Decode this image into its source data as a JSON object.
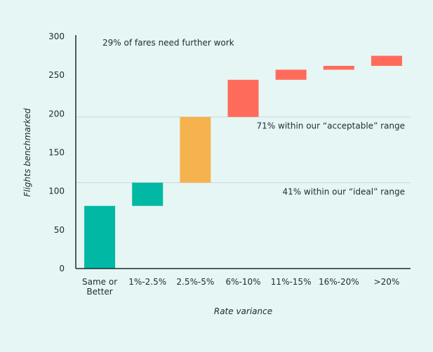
{
  "chart_data": {
    "type": "bar",
    "subtype": "waterfall",
    "title": "",
    "xlabel": "Rate variance",
    "ylabel": "Flights benchmarked",
    "ylim": [
      0,
      300
    ],
    "yticks": [
      "0",
      "50",
      "100",
      "150",
      "200",
      "250",
      "300"
    ],
    "categories": [
      [
        "Same or",
        "Better"
      ],
      [
        "1%-2.5%"
      ],
      [
        "2.5%-5%"
      ],
      [
        "6%-10%"
      ],
      [
        "11%-15%"
      ],
      [
        "16%-20%"
      ],
      [
        ">20%"
      ]
    ],
    "bars": [
      {
        "base": 0,
        "value": 81,
        "color": "#00b8a3"
      },
      {
        "base": 81,
        "value": 30,
        "color": "#00b8a3"
      },
      {
        "base": 111,
        "value": 85,
        "color": "#f5b24f"
      },
      {
        "base": 196,
        "value": 48,
        "color": "#ff6b5b"
      },
      {
        "base": 244,
        "value": 13,
        "color": "#ff6b5b"
      },
      {
        "base": 257,
        "value": 5,
        "color": "#ff6b5b"
      },
      {
        "base": 262,
        "value": 13,
        "color": "#ff6b5b"
      }
    ],
    "reference_lines": [
      {
        "y": 196,
        "label": "71% within our “acceptable” range"
      },
      {
        "y": 111,
        "label": "41% within our “ideal” range"
      }
    ],
    "annotations": [
      {
        "text": "29% of fares need further work"
      }
    ],
    "grid": false,
    "legend": "none",
    "colors": {
      "background": "#e6f6f4",
      "ideal": "#00b8a3",
      "acceptable": "#f5b24f",
      "needs_work": "#ff6b5b",
      "reference_line": "#cfd8d8",
      "axis": "#1c2b33"
    }
  }
}
